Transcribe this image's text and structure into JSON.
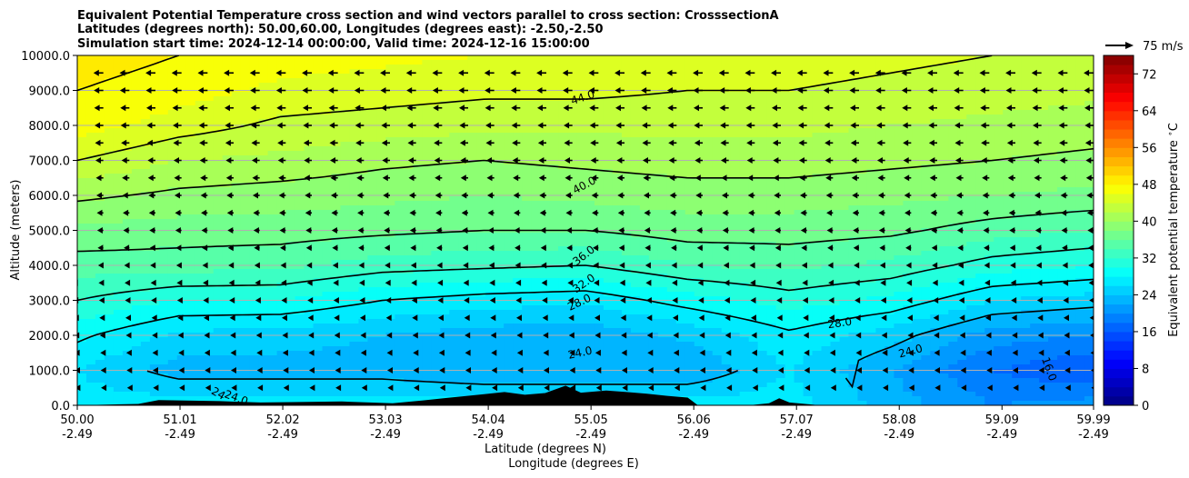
{
  "chart_data": {
    "type": "contourf",
    "title_lines": [
      "Equivalent Potential Temperature cross section and wind vectors parallel to cross section: CrosssectionA",
      "Latitudes (degrees north): 50.00,60.00, Longitudes (degrees east): -2.50,-2.50",
      "Simulation start time: 2024-12-14 00:00:00, Valid time: 2024-12-16 15:00:00"
    ],
    "xlabel": "Latitude (degrees N)",
    "xlabel2": "Longitude (degrees E)",
    "ylabel": "Altitude (meters)",
    "xlim": [
      50.0,
      59.99
    ],
    "ylim": [
      0,
      10000
    ],
    "x_ticks": [
      {
        "lat": 50.0,
        "lat_label": "50.00",
        "lon_label": "-2.49"
      },
      {
        "lat": 51.01,
        "lat_label": "51.01",
        "lon_label": "-2.49"
      },
      {
        "lat": 52.02,
        "lat_label": "52.02",
        "lon_label": "-2.49"
      },
      {
        "lat": 53.03,
        "lat_label": "53.03",
        "lon_label": "-2.49"
      },
      {
        "lat": 54.04,
        "lat_label": "54.04",
        "lon_label": "-2.49"
      },
      {
        "lat": 55.05,
        "lat_label": "55.05",
        "lon_label": "-2.49"
      },
      {
        "lat": 56.06,
        "lat_label": "56.06",
        "lon_label": "-2.49"
      },
      {
        "lat": 57.07,
        "lat_label": "57.07",
        "lon_label": "-2.49"
      },
      {
        "lat": 58.08,
        "lat_label": "58.08",
        "lon_label": "-2.49"
      },
      {
        "lat": 59.09,
        "lat_label": "59.09",
        "lon_label": "-2.49"
      },
      {
        "lat": 59.99,
        "lat_label": "59.99",
        "lon_label": "-2.49"
      }
    ],
    "y_ticks": [
      {
        "value": 0,
        "label": "0.0"
      },
      {
        "value": 1000,
        "label": "1000.0"
      },
      {
        "value": 2000,
        "label": "2000.0"
      },
      {
        "value": 3000,
        "label": "3000.0"
      },
      {
        "value": 4000,
        "label": "4000.0"
      },
      {
        "value": 5000,
        "label": "5000.0"
      },
      {
        "value": 6000,
        "label": "6000.0"
      },
      {
        "value": 7000,
        "label": "7000.0"
      },
      {
        "value": 8000,
        "label": "8000.0"
      },
      {
        "value": 9000,
        "label": "9000.0"
      },
      {
        "value": 10000,
        "label": "10000.0"
      }
    ],
    "grid_y": true,
    "colorbar": {
      "label": "Equivalent potential temperature $^\\circ$C",
      "min": 0,
      "max": 76,
      "step": 2,
      "ticks": [
        0,
        8,
        16,
        24,
        32,
        40,
        48,
        56,
        64,
        72
      ],
      "colormap": "jet"
    },
    "quiver_key": {
      "label": "75 m/s",
      "speed": 75
    },
    "wind_columns": 40,
    "wind_levels": [
      500,
      1000,
      1500,
      2000,
      2500,
      3000,
      3500,
      4000,
      4500,
      5000,
      5500,
      6000,
      6500,
      7000,
      7500,
      8000,
      8500,
      9000,
      9500
    ],
    "wind_speed_by_level": [
      {
        "z": 500,
        "u": -8
      },
      {
        "z": 2000,
        "u": -12
      },
      {
        "z": 4000,
        "u": -18
      },
      {
        "z": 6000,
        "u": -24
      },
      {
        "z": 8000,
        "u": -30
      },
      {
        "z": 9500,
        "u": -34
      }
    ],
    "theta_e_column_profiles": [
      {
        "lat": 50.0,
        "z": [
          0,
          1000,
          2000,
          3000,
          4000,
          5000,
          6000,
          7000,
          8000,
          9000,
          10000
        ],
        "theta": [
          27,
          26,
          28.5,
          32,
          35,
          37.5,
          40.5,
          44,
          47,
          48,
          49
        ]
      },
      {
        "lat": 51.0,
        "z": [
          0,
          1000,
          2000,
          3000,
          4000,
          5000,
          6000,
          7000,
          8000,
          9000,
          10000
        ],
        "theta": [
          27,
          23,
          25.5,
          30,
          35,
          37,
          39.5,
          42,
          45,
          47,
          48
        ]
      },
      {
        "lat": 52.0,
        "z": [
          0,
          1000,
          2000,
          3000,
          4000,
          5000,
          6000,
          7000,
          8000,
          9000,
          10000
        ],
        "theta": [
          27,
          23,
          25,
          30,
          34.5,
          37,
          39,
          41.5,
          43.5,
          45.5,
          47
        ]
      },
      {
        "lat": 53.0,
        "z": [
          0,
          1000,
          2000,
          3000,
          4000,
          5000,
          6000,
          7000,
          8000,
          9000,
          10000
        ],
        "theta": [
          27,
          23,
          24,
          28,
          33,
          36.5,
          38.5,
          40.5,
          43,
          45,
          46.5
        ]
      },
      {
        "lat": 54.0,
        "z": [
          0,
          1000,
          2000,
          3000,
          4000,
          5000,
          6000,
          7000,
          8000,
          9000,
          10000
        ],
        "theta": [
          27,
          22,
          23,
          27,
          32.5,
          36,
          38,
          40,
          42.5,
          44.5,
          46
        ]
      },
      {
        "lat": 55.0,
        "z": [
          0,
          1000,
          2000,
          3000,
          4000,
          5000,
          6000,
          7000,
          8000,
          9000,
          10000
        ],
        "theta": [
          27,
          22,
          22.5,
          26.5,
          32,
          36,
          38.5,
          40.5,
          42.5,
          44.5,
          46
        ]
      },
      {
        "lat": 56.0,
        "z": [
          0,
          1000,
          2000,
          3000,
          4000,
          5000,
          6000,
          7000,
          8000,
          9000,
          10000
        ],
        "theta": [
          27,
          22,
          24.5,
          29,
          34,
          37,
          39,
          41,
          42.5,
          44,
          45
        ]
      },
      {
        "lat": 57.0,
        "z": [
          0,
          1000,
          2000,
          3000,
          4000,
          5000,
          6000,
          7000,
          8000,
          9000,
          10000
        ],
        "theta": [
          27,
          26,
          27.5,
          31,
          34.5,
          37,
          39,
          41,
          42.5,
          44,
          45
        ]
      },
      {
        "lat": 58.0,
        "z": [
          0,
          1000,
          2000,
          3000,
          4000,
          5000,
          6000,
          7000,
          8000,
          9000,
          10000
        ],
        "theta": [
          23,
          22,
          25,
          29.5,
          33.5,
          36.5,
          38.5,
          40.5,
          42,
          43.5,
          44.5
        ]
      },
      {
        "lat": 59.0,
        "z": [
          0,
          1000,
          2000,
          3000,
          4000,
          5000,
          6000,
          7000,
          8000,
          9000,
          10000
        ],
        "theta": [
          20,
          18,
          21,
          26,
          31,
          35,
          38,
          40,
          41.5,
          43,
          44
        ]
      },
      {
        "lat": 59.99,
        "z": [
          0,
          1000,
          2000,
          3000,
          4000,
          5000,
          6000,
          7000,
          8000,
          9000,
          10000
        ],
        "theta": [
          21,
          16,
          20,
          25,
          30,
          34,
          37.5,
          39.5,
          41,
          42.5,
          43.5
        ]
      }
    ],
    "contour_levels": [
      16,
      24,
      28,
      32,
      36,
      40,
      44,
      48
    ],
    "contour_labels": [
      {
        "text": "44.0",
        "lat": 54.98,
        "z": 8700,
        "angle": -18
      },
      {
        "text": "40.0",
        "lat": 55.0,
        "z": 6200,
        "angle": -28
      },
      {
        "text": "36.0",
        "lat": 55.0,
        "z": 4200,
        "angle": -38
      },
      {
        "text": "32.0",
        "lat": 55.0,
        "z": 3400,
        "angle": -35
      },
      {
        "text": "28.0",
        "lat": 54.95,
        "z": 2850,
        "angle": -25
      },
      {
        "text": "28.0",
        "lat": 57.5,
        "z": 2250,
        "angle": -8
      },
      {
        "text": "24.0",
        "lat": 54.95,
        "z": 1400,
        "angle": -12
      },
      {
        "text": "24.0",
        "lat": 58.2,
        "z": 1450,
        "angle": -15
      },
      {
        "text": "16.0",
        "lat": 59.52,
        "z": 1000,
        "angle": 70
      },
      {
        "text": "24",
        "lat": 51.37,
        "z": 250,
        "angle": 30
      },
      {
        "text": "24.0",
        "lat": 51.55,
        "z": 120,
        "angle": 20
      }
    ],
    "terrain": [
      {
        "lat": 50.0,
        "z": 0
      },
      {
        "lat": 50.6,
        "z": 40
      },
      {
        "lat": 50.8,
        "z": 150
      },
      {
        "lat": 51.0,
        "z": 140
      },
      {
        "lat": 51.4,
        "z": 120
      },
      {
        "lat": 51.8,
        "z": 80
      },
      {
        "lat": 52.1,
        "z": 90
      },
      {
        "lat": 52.6,
        "z": 110
      },
      {
        "lat": 53.1,
        "z": 60
      },
      {
        "lat": 53.4,
        "z": 140
      },
      {
        "lat": 53.6,
        "z": 200
      },
      {
        "lat": 53.8,
        "z": 260
      },
      {
        "lat": 54.0,
        "z": 320
      },
      {
        "lat": 54.2,
        "z": 380
      },
      {
        "lat": 54.4,
        "z": 300
      },
      {
        "lat": 54.6,
        "z": 350
      },
      {
        "lat": 54.8,
        "z": 560
      },
      {
        "lat": 54.95,
        "z": 360
      },
      {
        "lat": 55.2,
        "z": 420
      },
      {
        "lat": 55.4,
        "z": 380
      },
      {
        "lat": 55.6,
        "z": 330
      },
      {
        "lat": 55.8,
        "z": 270
      },
      {
        "lat": 56.0,
        "z": 220
      },
      {
        "lat": 56.1,
        "z": 0
      },
      {
        "lat": 56.6,
        "z": 0
      },
      {
        "lat": 56.8,
        "z": 60
      },
      {
        "lat": 56.9,
        "z": 200
      },
      {
        "lat": 57.0,
        "z": 80
      },
      {
        "lat": 57.3,
        "z": 0
      },
      {
        "lat": 59.99,
        "z": 0
      }
    ]
  }
}
